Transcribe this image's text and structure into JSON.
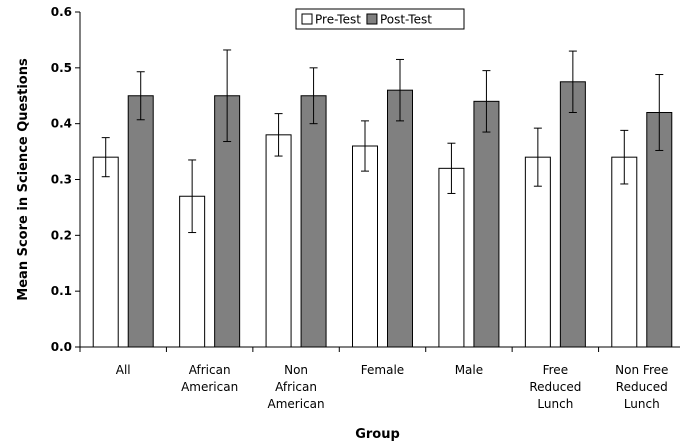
{
  "chart_data": {
    "type": "bar",
    "categories": [
      [
        "All"
      ],
      [
        "African",
        "American"
      ],
      [
        "Non",
        "African",
        "American"
      ],
      [
        "Female"
      ],
      [
        "Male"
      ],
      [
        "Free",
        "Reduced",
        "Lunch"
      ],
      [
        "Non Free",
        "Reduced",
        "Lunch"
      ]
    ],
    "series": [
      {
        "name": "Pre-Test",
        "color": "#ffffff",
        "values": [
          0.34,
          0.27,
          0.38,
          0.36,
          0.32,
          0.34,
          0.34
        ],
        "error": [
          0.035,
          0.065,
          0.038,
          0.045,
          0.045,
          0.052,
          0.048
        ]
      },
      {
        "name": "Post-Test",
        "color": "#808080",
        "values": [
          0.45,
          0.45,
          0.45,
          0.46,
          0.44,
          0.475,
          0.42
        ],
        "error": [
          0.043,
          0.082,
          0.05,
          0.055,
          0.055,
          0.055,
          0.068
        ]
      }
    ],
    "xlabel": "Group",
    "ylabel": "Mean Score in Science Questions",
    "ylim": [
      0,
      0.6
    ],
    "yticks": [
      "0.0",
      "0.1",
      "0.2",
      "0.3",
      "0.4",
      "0.5",
      "0.6"
    ],
    "grid": false,
    "legend_position": "top-center"
  }
}
